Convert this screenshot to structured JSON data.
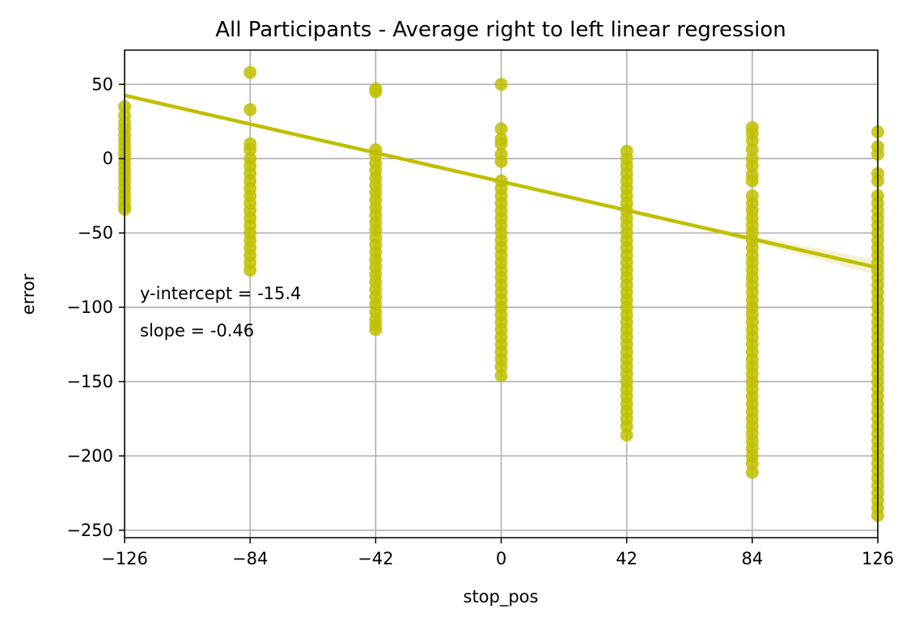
{
  "chart_data": {
    "type": "scatter",
    "title": "All Participants - Average right to left linear regression",
    "xlabel": "stop_pos",
    "ylabel": "error",
    "xlim": [
      -126,
      126
    ],
    "ylim": [
      -255,
      73
    ],
    "xticks": [
      -126,
      -84,
      -42,
      0,
      42,
      84,
      126
    ],
    "xtick_labels": [
      "−126",
      "−84",
      "−42",
      "0",
      "42",
      "84",
      "126"
    ],
    "yticks": [
      50,
      0,
      -50,
      -100,
      -150,
      -200,
      -250
    ],
    "ytick_labels": [
      "50",
      "0",
      "−50",
      "−100",
      "−150",
      "−200",
      "−250"
    ],
    "grid": true,
    "color": "#bfbf00",
    "point_groups": [
      {
        "x": -126,
        "y": [
          35,
          29,
          24,
          20,
          16,
          12,
          8,
          4,
          0,
          -4,
          -8,
          -12,
          -16,
          -20,
          -24,
          -28,
          -32,
          -34
        ]
      },
      {
        "x": -84,
        "y": [
          58,
          33,
          10,
          6,
          0,
          -5,
          -10,
          -15,
          -20,
          -25,
          -30,
          -35,
          -40,
          -45,
          -50,
          -55,
          -60,
          -65,
          -70,
          -75
        ]
      },
      {
        "x": -42,
        "y": [
          47,
          45,
          6,
          2,
          -3,
          -8,
          -13,
          -18,
          -23,
          -28,
          -33,
          -38,
          -43,
          -48,
          -53,
          -58,
          -63,
          -68,
          -73,
          -78,
          -83,
          -88,
          -93,
          -98,
          -103,
          -108,
          -112,
          -115
        ]
      },
      {
        "x": 0,
        "y": [
          50,
          20,
          13,
          10,
          3,
          -2,
          -15,
          -20,
          -25,
          -30,
          -35,
          -40,
          -45,
          -50,
          -55,
          -60,
          -65,
          -70,
          -75,
          -80,
          -85,
          -90,
          -95,
          -100,
          -105,
          -110,
          -115,
          -120,
          -125,
          -130,
          -135,
          -140,
          -146
        ]
      },
      {
        "x": 42,
        "y": [
          5,
          0,
          -5,
          -10,
          -15,
          -20,
          -25,
          -30,
          -35,
          -40,
          -45,
          -50,
          -55,
          -60,
          -65,
          -70,
          -75,
          -80,
          -85,
          -90,
          -95,
          -100,
          -105,
          -110,
          -115,
          -120,
          -125,
          -130,
          -135,
          -140,
          -145,
          -150,
          -155,
          -160,
          -165,
          -170,
          -175,
          -180,
          -186
        ]
      },
      {
        "x": 84,
        "y": [
          21,
          17,
          12,
          6,
          0,
          -5,
          -11,
          -15,
          -25,
          -30,
          -35,
          -40,
          -45,
          -50,
          -55,
          -60,
          -65,
          -70,
          -75,
          -80,
          -85,
          -90,
          -95,
          -100,
          -105,
          -110,
          -115,
          -120,
          -125,
          -130,
          -135,
          -140,
          -145,
          -150,
          -155,
          -160,
          -165,
          -170,
          -175,
          -180,
          -185,
          -190,
          -195,
          -200,
          -205,
          -211
        ]
      },
      {
        "x": 126,
        "y": [
          18,
          8,
          3,
          -10,
          -15,
          -25,
          -30,
          -35,
          -40,
          -45,
          -50,
          -55,
          -60,
          -65,
          -70,
          -75,
          -80,
          -85,
          -90,
          -95,
          -100,
          -105,
          -110,
          -115,
          -120,
          -125,
          -130,
          -135,
          -140,
          -145,
          -150,
          -155,
          -160,
          -165,
          -170,
          -175,
          -180,
          -185,
          -190,
          -195,
          -200,
          -205,
          -210,
          -215,
          -220,
          -225,
          -230,
          -235,
          -240
        ]
      }
    ],
    "regression": {
      "intercept": -15.4,
      "slope": -0.46
    },
    "annotations": [
      "y-intercept = -15.4",
      "slope = -0.46"
    ]
  }
}
